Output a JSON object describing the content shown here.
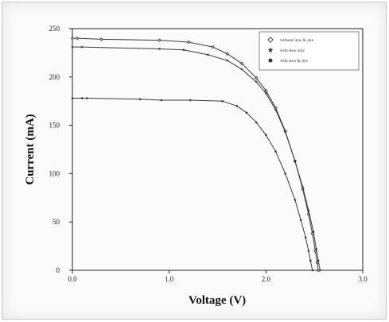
{
  "chart_data": {
    "type": "line",
    "xlabel": "Voltage (V)",
    "ylabel": "Current (mA)",
    "xlim": [
      0,
      3.0
    ],
    "ylim": [
      0,
      250
    ],
    "x_ticks": [
      "0.0",
      "1.0",
      "2.0",
      "3.0"
    ],
    "y_ticks": [
      "0",
      "50",
      "100",
      "150",
      "200",
      "250"
    ],
    "grid": false,
    "legend_position": "top-right",
    "series": [
      {
        "name": "without lens & dye",
        "marker": "open-diamond",
        "points": [
          [
            0.0,
            240
          ],
          [
            0.05,
            240
          ],
          [
            0.3,
            239
          ],
          [
            0.9,
            238
          ],
          [
            1.2,
            236
          ],
          [
            1.45,
            231
          ],
          [
            1.6,
            224
          ],
          [
            1.75,
            214
          ],
          [
            1.9,
            199
          ],
          [
            2.0,
            186
          ],
          [
            2.1,
            168
          ],
          [
            2.2,
            144
          ],
          [
            2.3,
            113
          ],
          [
            2.38,
            84
          ],
          [
            2.44,
            58
          ],
          [
            2.48,
            38
          ],
          [
            2.51,
            20
          ],
          [
            2.53,
            8
          ],
          [
            2.54,
            0
          ]
        ]
      },
      {
        "name": "with lens only",
        "marker": "star",
        "points": [
          [
            0.0,
            231
          ],
          [
            0.1,
            231
          ],
          [
            0.9,
            229
          ],
          [
            1.15,
            228
          ],
          [
            1.4,
            223
          ],
          [
            1.6,
            217
          ],
          [
            1.75,
            208
          ],
          [
            1.9,
            195
          ],
          [
            2.0,
            183
          ],
          [
            2.1,
            166
          ],
          [
            2.2,
            143
          ],
          [
            2.3,
            113
          ],
          [
            2.38,
            86
          ],
          [
            2.44,
            62
          ],
          [
            2.49,
            40
          ],
          [
            2.52,
            22
          ],
          [
            2.54,
            10
          ],
          [
            2.56,
            0
          ]
        ]
      },
      {
        "name": "with lens & dye",
        "marker": "filled-circle",
        "points": [
          [
            0.0,
            178
          ],
          [
            0.1,
            178
          ],
          [
            0.15,
            178
          ],
          [
            0.7,
            177
          ],
          [
            0.92,
            176
          ],
          [
            1.22,
            176
          ],
          [
            1.55,
            175
          ],
          [
            1.7,
            170
          ],
          [
            1.8,
            163
          ],
          [
            1.9,
            153
          ],
          [
            2.0,
            140
          ],
          [
            2.1,
            123
          ],
          [
            2.2,
            100
          ],
          [
            2.3,
            73
          ],
          [
            2.36,
            52
          ],
          [
            2.41,
            34
          ],
          [
            2.44,
            20
          ],
          [
            2.46,
            10
          ],
          [
            2.48,
            0
          ]
        ]
      }
    ],
    "colors": {
      "line": "#3a3a3a",
      "marker": "#333333",
      "frame": "#222222"
    }
  }
}
